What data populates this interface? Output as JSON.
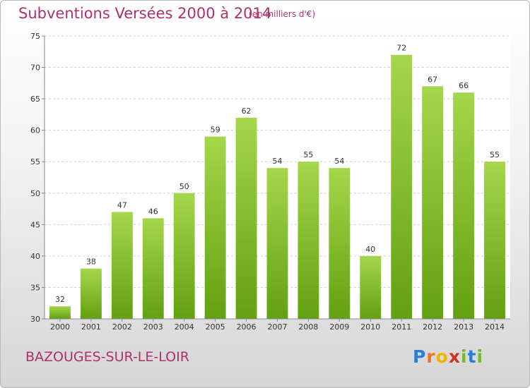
{
  "title": "Subventions Versées 2000 à 2014",
  "subtitle": "(en milliers d'€)",
  "commune": "BAZOUGES-SUR-LE-LOIR",
  "logo": {
    "letters": [
      "P",
      "r",
      "o",
      "x",
      "i",
      "t",
      "i"
    ],
    "colors": [
      "#2a7fd0",
      "#e87722",
      "#f0b400",
      "#d0312d",
      "#78b82a",
      "#2a7fd0",
      "#78b82a"
    ]
  },
  "colors": {
    "bar_light": "#a5d64c",
    "bar_dark": "#63a012",
    "title": "#b0306a"
  },
  "chart_data": {
    "type": "bar",
    "title": "Subventions Versées 2000 à 2014",
    "categories": [
      "2000",
      "2001",
      "2002",
      "2003",
      "2004",
      "2005",
      "2006",
      "2007",
      "2008",
      "2009",
      "2010",
      "2011",
      "2012",
      "2013",
      "2014"
    ],
    "values": [
      32,
      38,
      47,
      46,
      50,
      59,
      62,
      54,
      55,
      54,
      40,
      72,
      67,
      66,
      55
    ],
    "ylim": [
      30,
      75
    ],
    "yticks": [
      30,
      35,
      40,
      45,
      50,
      55,
      60,
      65,
      70,
      75
    ],
    "xlabel": "",
    "ylabel": "",
    "grid": true,
    "data_labels": true
  }
}
